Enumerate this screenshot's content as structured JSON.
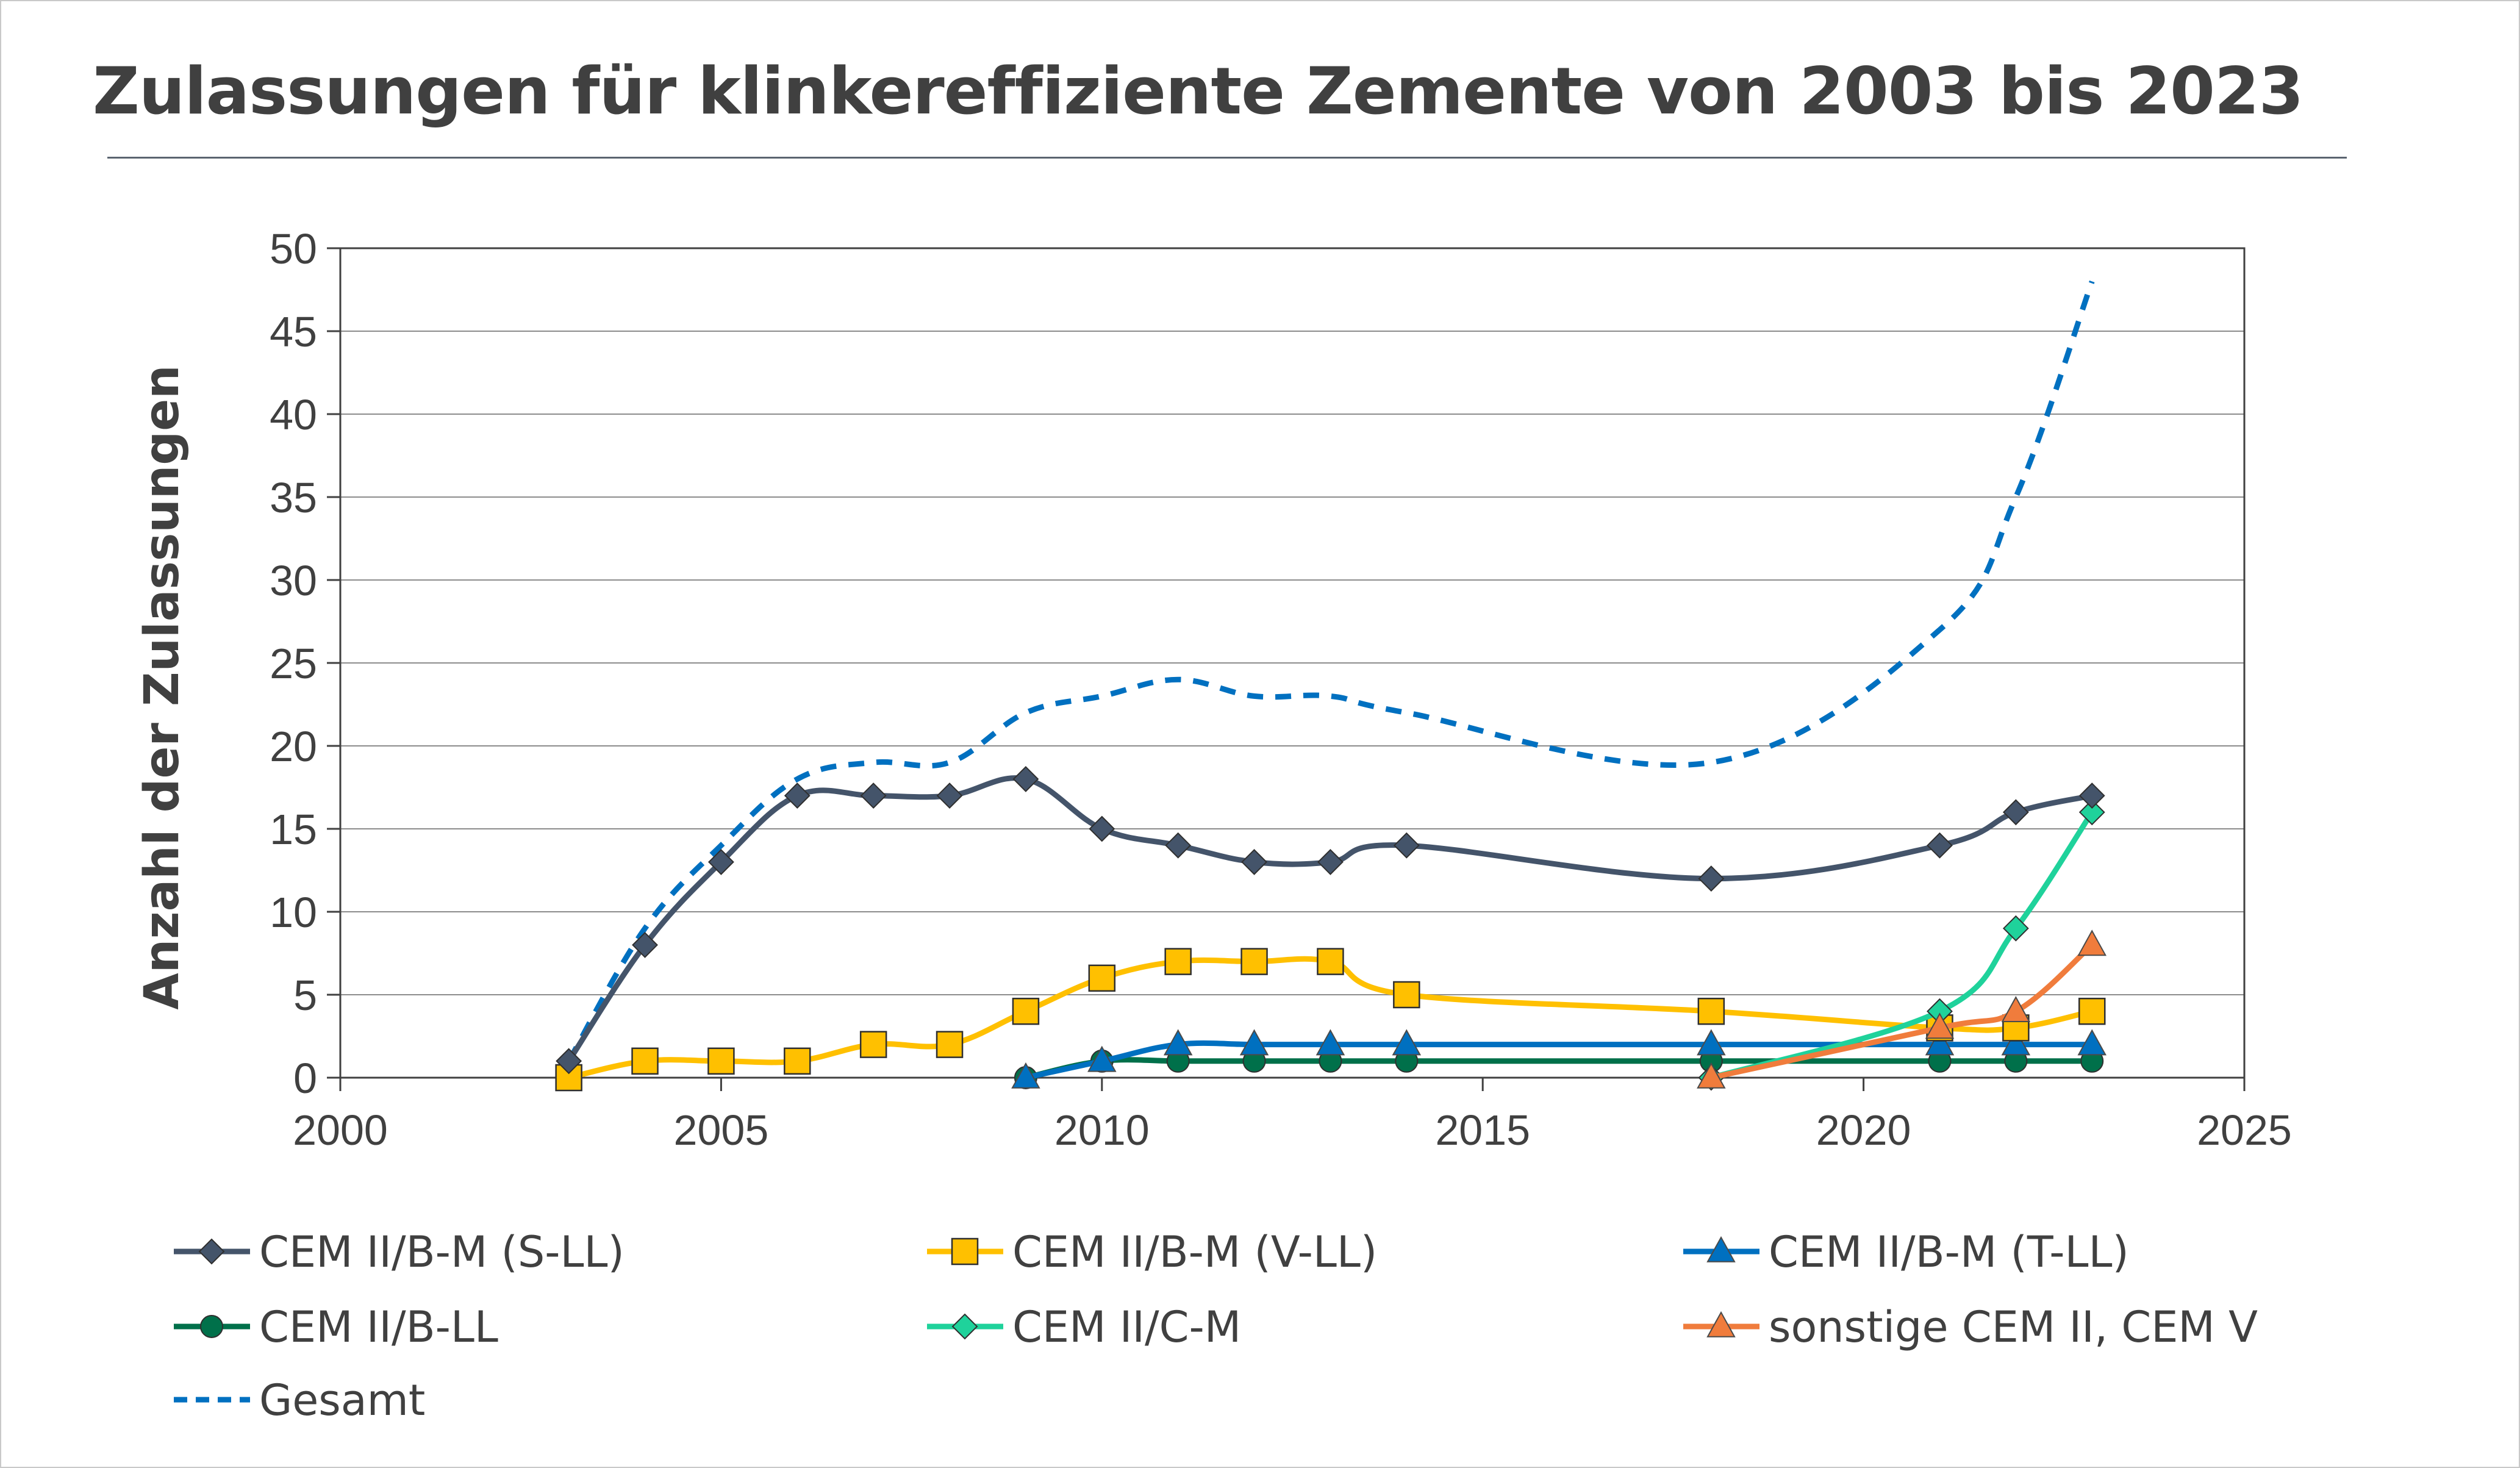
{
  "title": "Zulassungen für klinkereffiziente Zemente von 2003 bis 2023",
  "chart_data": {
    "type": "line",
    "title": "Zulassungen für klinkereffiziente Zemente von 2003 bis 2023",
    "xlabel": "",
    "ylabel": "Anzahl der Zulassungen",
    "xlim": [
      2000,
      2025
    ],
    "ylim": [
      0,
      50
    ],
    "x_ticks": [
      2000,
      2005,
      2010,
      2015,
      2020,
      2025
    ],
    "y_ticks": [
      0,
      5,
      10,
      15,
      20,
      25,
      30,
      35,
      40,
      45,
      50
    ],
    "grid": "horizontal",
    "legend_position": "bottom",
    "series": [
      {
        "name": "CEM II/B-M (S-LL)",
        "color": "#44546a",
        "marker": "diamond",
        "dash": "solid",
        "x": [
          2003,
          2004,
          2005,
          2006,
          2007,
          2008,
          2009,
          2010,
          2011,
          2012,
          2013,
          2014,
          2018,
          2021,
          2022,
          2023
        ],
        "y": [
          1,
          8,
          13,
          17,
          17,
          17,
          18,
          15,
          14,
          13,
          13,
          14,
          12,
          14,
          16,
          17
        ]
      },
      {
        "name": "CEM II/B-M (V-LL)",
        "color": "#ffc000",
        "marker": "square",
        "dash": "solid",
        "x": [
          2003,
          2004,
          2005,
          2006,
          2007,
          2008,
          2009,
          2010,
          2011,
          2012,
          2013,
          2014,
          2018,
          2021,
          2022,
          2023
        ],
        "y": [
          0,
          1,
          1,
          1,
          2,
          2,
          4,
          6,
          7,
          7,
          7,
          5,
          4,
          3,
          3,
          4
        ]
      },
      {
        "name": "CEM II/B-M (T-LL)",
        "color": "#0070c0",
        "marker": "triangle",
        "dash": "solid",
        "x": [
          2009,
          2010,
          2011,
          2012,
          2013,
          2014,
          2018,
          2021,
          2022,
          2023
        ],
        "y": [
          0,
          1,
          2,
          2,
          2,
          2,
          2,
          2,
          2,
          2
        ]
      },
      {
        "name": "CEM II/B-LL",
        "color": "#00704a",
        "marker": "circle",
        "dash": "solid",
        "x": [
          2009,
          2010,
          2011,
          2012,
          2013,
          2014,
          2018,
          2021,
          2022,
          2023
        ],
        "y": [
          0,
          1,
          1,
          1,
          1,
          1,
          1,
          1,
          1,
          1
        ]
      },
      {
        "name": "CEM II/C-M",
        "color": "#1fd29b",
        "marker": "diamond",
        "dash": "solid",
        "x": [
          2018,
          2021,
          2022,
          2023
        ],
        "y": [
          0,
          4,
          9,
          16
        ]
      },
      {
        "name": "sonstige CEM II, CEM V",
        "color": "#f07c3c",
        "marker": "triangle",
        "dash": "solid",
        "x": [
          2018,
          2021,
          2022,
          2023
        ],
        "y": [
          0,
          3,
          4,
          8
        ]
      },
      {
        "name": "Gesamt",
        "color": "#0070c0",
        "marker": "none",
        "dash": "dashed",
        "x": [
          2003,
          2004,
          2005,
          2006,
          2007,
          2008,
          2009,
          2010,
          2011,
          2012,
          2013,
          2014,
          2018,
          2021,
          2022,
          2023
        ],
        "y": [
          1,
          9,
          14,
          18,
          19,
          19,
          22,
          23,
          24,
          23,
          23,
          22,
          19,
          27,
          35,
          48
        ]
      }
    ]
  }
}
